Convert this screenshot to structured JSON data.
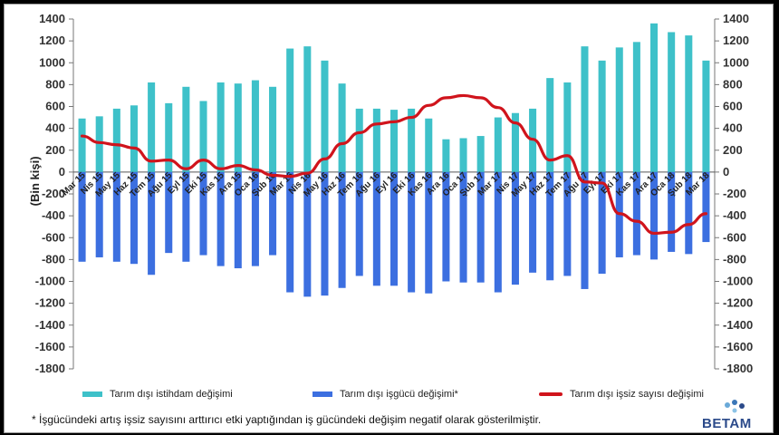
{
  "chart_data": {
    "type": "bar",
    "title": "",
    "ylabel": "(Bin kişi)",
    "ylim": [
      -1800,
      1400
    ],
    "ytick_step": 200,
    "grid": false,
    "legend_position": "bottom",
    "categories": [
      "Mar 15",
      "Nis 15",
      "May 15",
      "Haz 15",
      "Tem 15",
      "Ağu 15",
      "Eyl 15",
      "Eki 15",
      "Kas 15",
      "Ara 15",
      "Oca 16",
      "Şub 16",
      "Mar 16",
      "Nis 16",
      "May 16",
      "Haz 16",
      "Tem 16",
      "Ağu 16",
      "Eyl 16",
      "Eki 16",
      "Kas 16",
      "Ara 16",
      "Oca 17",
      "Şub 17",
      "Mar 17",
      "Nis 17",
      "May 17",
      "Haz 17",
      "Tem 17",
      "Ağu 17",
      "Eyl 17",
      "Eki 17",
      "Kas 17",
      "Ara 17",
      "Oca 18",
      "Şub 18",
      "Mar 18"
    ],
    "series": [
      {
        "name": "Tarım dışı istihdam değişimi",
        "kind": "bar",
        "color": "#3ec1c9",
        "values": [
          490,
          510,
          580,
          610,
          820,
          630,
          780,
          650,
          820,
          810,
          840,
          780,
          1130,
          1150,
          1020,
          810,
          580,
          580,
          570,
          580,
          490,
          300,
          310,
          330,
          500,
          540,
          580,
          860,
          820,
          1150,
          1020,
          1140,
          1190,
          1360,
          1280,
          1250,
          1020
        ]
      },
      {
        "name": "Tarım dışı işgücü değişimi*",
        "kind": "bar",
        "color": "#3c6fe0",
        "values": [
          -820,
          -780,
          -820,
          -840,
          -940,
          -740,
          -820,
          -760,
          -860,
          -880,
          -860,
          -760,
          -1100,
          -1140,
          -1130,
          -1060,
          -950,
          -1040,
          -1040,
          -1100,
          -1110,
          -1000,
          -1010,
          -1010,
          -1100,
          -1030,
          -920,
          -990,
          -950,
          -1070,
          -930,
          -780,
          -760,
          -800,
          -730,
          -750,
          -640
        ]
      },
      {
        "name": "Tarım dışı işsiz sayısı değişimi",
        "kind": "line",
        "color": "#d0141c",
        "values": [
          330,
          270,
          250,
          220,
          100,
          110,
          30,
          110,
          30,
          60,
          20,
          -30,
          -40,
          -10,
          120,
          260,
          360,
          440,
          460,
          500,
          610,
          680,
          700,
          680,
          590,
          450,
          300,
          110,
          150,
          -90,
          -100,
          -380,
          -450,
          -560,
          -550,
          -480,
          -380
        ]
      }
    ]
  },
  "footnote": "* İşgücündeki artış işsiz sayısını arttırıcı etki yaptığından iş gücündeki değişim negatif olarak gösterilmiştir.",
  "logo": {
    "text": "BETAM"
  }
}
